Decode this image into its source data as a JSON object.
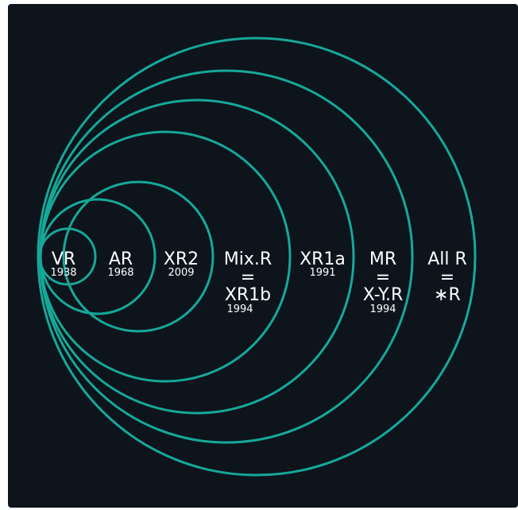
{
  "colors": {
    "background": "#0d141c",
    "ring": "#16a898",
    "text": "#ffffff"
  },
  "rings": [
    {
      "id": "vr",
      "label": "VR",
      "year": "1938"
    },
    {
      "id": "ar",
      "label": "AR",
      "year": "1968"
    },
    {
      "id": "xr2",
      "label": "XR2",
      "year": "2009"
    },
    {
      "id": "mixr",
      "label": "Mix.R",
      "eq": "=",
      "alt": "XR1b",
      "year": "1994"
    },
    {
      "id": "xr1a",
      "label": "XR1a",
      "year": "1991"
    },
    {
      "id": "mr",
      "label": "MR",
      "eq": "=",
      "alt": "X-Y.R",
      "year": "1994"
    },
    {
      "id": "allr",
      "label": "All R",
      "eq": "=",
      "alt": "∗R"
    }
  ]
}
